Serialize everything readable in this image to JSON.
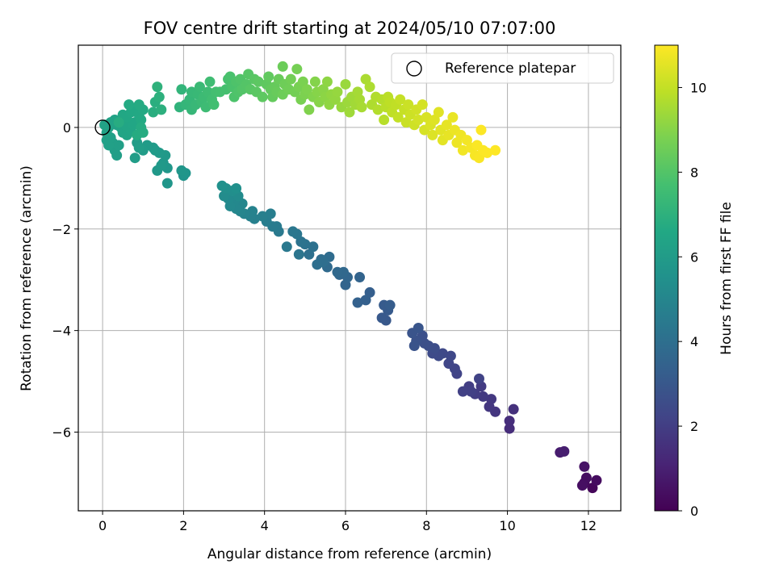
{
  "chart_data": {
    "type": "scatter",
    "title": "FOV centre drift starting at 2024/05/10 07:07:00",
    "xlabel": "Angular distance from reference (arcmin)",
    "ylabel": "Rotation from reference (arcmin)",
    "xlim": [
      -0.6,
      12.8
    ],
    "ylim": [
      -7.55,
      1.62
    ],
    "x_ticks": [
      0,
      2,
      4,
      6,
      8,
      10,
      12
    ],
    "y_ticks": [
      0,
      -2,
      -4,
      -6
    ],
    "grid": true,
    "legend": {
      "placement": "top-right",
      "entries": [
        "Reference platepar"
      ]
    },
    "reference_point": {
      "x": 0,
      "y": 0
    },
    "colorbar": {
      "label": "Hours from first FF file",
      "range": [
        0,
        11
      ],
      "ticks": [
        0,
        2,
        4,
        6,
        8,
        10
      ],
      "colormap": "viridis"
    },
    "points": [
      {
        "x": 12.1,
        "y": -7.1,
        "h": 0.2
      },
      {
        "x": 11.9,
        "y": -7.0,
        "h": 0.3
      },
      {
        "x": 12.2,
        "y": -6.95,
        "h": 0.35
      },
      {
        "x": 11.95,
        "y": -6.9,
        "h": 0.4
      },
      {
        "x": 11.85,
        "y": -7.05,
        "h": 0.45
      },
      {
        "x": 11.9,
        "y": -6.68,
        "h": 0.55
      },
      {
        "x": 11.3,
        "y": -6.4,
        "h": 0.85
      },
      {
        "x": 11.4,
        "y": -6.38,
        "h": 0.9
      },
      {
        "x": 10.05,
        "y": -5.93,
        "h": 1.4
      },
      {
        "x": 10.05,
        "y": -5.78,
        "h": 1.45
      },
      {
        "x": 10.15,
        "y": -5.55,
        "h": 1.55
      },
      {
        "x": 9.7,
        "y": -5.6,
        "h": 1.7
      },
      {
        "x": 9.55,
        "y": -5.5,
        "h": 1.75
      },
      {
        "x": 9.6,
        "y": -5.35,
        "h": 1.8
      },
      {
        "x": 9.4,
        "y": -5.3,
        "h": 1.85
      },
      {
        "x": 9.35,
        "y": -5.1,
        "h": 1.9
      },
      {
        "x": 9.2,
        "y": -5.25,
        "h": 1.95
      },
      {
        "x": 9.05,
        "y": -5.1,
        "h": 2.0
      },
      {
        "x": 9.1,
        "y": -5.2,
        "h": 2.05
      },
      {
        "x": 8.9,
        "y": -5.2,
        "h": 2.1
      },
      {
        "x": 9.3,
        "y": -4.95,
        "h": 2.15
      },
      {
        "x": 8.75,
        "y": -4.85,
        "h": 2.2
      },
      {
        "x": 8.7,
        "y": -4.75,
        "h": 2.25
      },
      {
        "x": 8.55,
        "y": -4.65,
        "h": 2.3
      },
      {
        "x": 8.6,
        "y": -4.5,
        "h": 2.35
      },
      {
        "x": 8.4,
        "y": -4.45,
        "h": 2.4
      },
      {
        "x": 8.3,
        "y": -4.5,
        "h": 2.45
      },
      {
        "x": 8.15,
        "y": -4.45,
        "h": 2.5
      },
      {
        "x": 8.2,
        "y": -4.35,
        "h": 2.55
      },
      {
        "x": 8.05,
        "y": -4.3,
        "h": 2.6
      },
      {
        "x": 7.95,
        "y": -4.25,
        "h": 2.65
      },
      {
        "x": 7.9,
        "y": -4.1,
        "h": 2.7
      },
      {
        "x": 7.75,
        "y": -4.2,
        "h": 2.75
      },
      {
        "x": 7.7,
        "y": -4.3,
        "h": 2.8
      },
      {
        "x": 7.65,
        "y": -4.05,
        "h": 2.85
      },
      {
        "x": 7.8,
        "y": -3.95,
        "h": 2.9
      },
      {
        "x": 7.0,
        "y": -3.8,
        "h": 3.0
      },
      {
        "x": 6.9,
        "y": -3.75,
        "h": 3.05
      },
      {
        "x": 7.05,
        "y": -3.6,
        "h": 3.1
      },
      {
        "x": 6.95,
        "y": -3.5,
        "h": 3.15
      },
      {
        "x": 7.1,
        "y": -3.5,
        "h": 3.2
      },
      {
        "x": 6.6,
        "y": -3.25,
        "h": 3.3
      },
      {
        "x": 6.5,
        "y": -3.4,
        "h": 3.35
      },
      {
        "x": 6.3,
        "y": -3.45,
        "h": 3.4
      },
      {
        "x": 6.35,
        "y": -2.95,
        "h": 3.5
      },
      {
        "x": 6.0,
        "y": -3.1,
        "h": 3.55
      },
      {
        "x": 6.05,
        "y": -2.95,
        "h": 3.6
      },
      {
        "x": 5.85,
        "y": -2.9,
        "h": 3.65
      },
      {
        "x": 5.95,
        "y": -2.85,
        "h": 3.7
      },
      {
        "x": 5.8,
        "y": -2.85,
        "h": 3.75
      },
      {
        "x": 5.55,
        "y": -2.75,
        "h": 3.8
      },
      {
        "x": 5.6,
        "y": -2.55,
        "h": 3.85
      },
      {
        "x": 5.4,
        "y": -2.6,
        "h": 3.9
      },
      {
        "x": 5.45,
        "y": -2.65,
        "h": 3.95
      },
      {
        "x": 5.3,
        "y": -2.7,
        "h": 4.0
      },
      {
        "x": 5.1,
        "y": -2.5,
        "h": 4.05
      },
      {
        "x": 5.2,
        "y": -2.35,
        "h": 4.1
      },
      {
        "x": 5.0,
        "y": -2.3,
        "h": 4.15
      },
      {
        "x": 4.9,
        "y": -2.25,
        "h": 4.2
      },
      {
        "x": 4.85,
        "y": -2.5,
        "h": 4.25
      },
      {
        "x": 4.8,
        "y": -2.1,
        "h": 4.3
      },
      {
        "x": 4.7,
        "y": -2.05,
        "h": 4.35
      },
      {
        "x": 4.55,
        "y": -2.35,
        "h": 4.4
      },
      {
        "x": 4.35,
        "y": -2.05,
        "h": 4.45
      },
      {
        "x": 4.3,
        "y": -1.95,
        "h": 4.5
      },
      {
        "x": 4.2,
        "y": -1.95,
        "h": 4.55
      },
      {
        "x": 4.05,
        "y": -1.85,
        "h": 4.6
      },
      {
        "x": 4.15,
        "y": -1.7,
        "h": 4.65
      },
      {
        "x": 3.95,
        "y": -1.75,
        "h": 4.7
      },
      {
        "x": 3.75,
        "y": -1.8,
        "h": 4.75
      },
      {
        "x": 3.65,
        "y": -1.75,
        "h": 4.8
      },
      {
        "x": 3.7,
        "y": -1.65,
        "h": 4.85
      },
      {
        "x": 3.5,
        "y": -1.7,
        "h": 4.9
      },
      {
        "x": 3.4,
        "y": -1.65,
        "h": 4.95
      },
      {
        "x": 3.45,
        "y": -1.5,
        "h": 5.0
      },
      {
        "x": 3.3,
        "y": -1.6,
        "h": 5.05
      },
      {
        "x": 3.25,
        "y": -1.45,
        "h": 5.1
      },
      {
        "x": 3.15,
        "y": -1.55,
        "h": 5.15
      },
      {
        "x": 3.1,
        "y": -1.4,
        "h": 5.2
      },
      {
        "x": 3.35,
        "y": -1.35,
        "h": 5.25
      },
      {
        "x": 3.0,
        "y": -1.35,
        "h": 5.3
      },
      {
        "x": 3.2,
        "y": -1.25,
        "h": 5.35
      },
      {
        "x": 3.05,
        "y": -1.2,
        "h": 5.4
      },
      {
        "x": 3.3,
        "y": -1.2,
        "h": 5.45
      },
      {
        "x": 2.95,
        "y": -1.15,
        "h": 5.5
      },
      {
        "x": 2.0,
        "y": -0.95,
        "h": 5.65
      },
      {
        "x": 2.05,
        "y": -0.9,
        "h": 5.7
      },
      {
        "x": 1.95,
        "y": -0.85,
        "h": 5.72
      },
      {
        "x": 1.6,
        "y": -1.1,
        "h": 5.75
      },
      {
        "x": 1.6,
        "y": -0.8,
        "h": 5.8
      },
      {
        "x": 1.5,
        "y": -0.7,
        "h": 5.82
      },
      {
        "x": 1.35,
        "y": -0.85,
        "h": 5.85
      },
      {
        "x": 1.45,
        "y": -0.75,
        "h": 5.87
      },
      {
        "x": 1.55,
        "y": -0.55,
        "h": 5.9
      },
      {
        "x": 1.4,
        "y": -0.5,
        "h": 5.92
      },
      {
        "x": 1.3,
        "y": -0.45,
        "h": 5.95
      },
      {
        "x": 1.25,
        "y": -0.4,
        "h": 5.97
      },
      {
        "x": 1.1,
        "y": -0.35,
        "h": 6.0
      },
      {
        "x": 1.0,
        "y": -0.45,
        "h": 6.02
      },
      {
        "x": 0.85,
        "y": -0.3,
        "h": 6.05
      },
      {
        "x": 0.8,
        "y": -0.6,
        "h": 6.07
      },
      {
        "x": 0.9,
        "y": -0.4,
        "h": 6.1
      },
      {
        "x": 0.35,
        "y": -0.55,
        "h": 6.12
      },
      {
        "x": 0.3,
        "y": -0.45,
        "h": 6.14
      },
      {
        "x": 0.4,
        "y": -0.35,
        "h": 6.16
      },
      {
        "x": 0.25,
        "y": -0.3,
        "h": 6.18
      },
      {
        "x": 0.15,
        "y": -0.35,
        "h": 6.2
      },
      {
        "x": 0.1,
        "y": -0.25,
        "h": 6.22
      },
      {
        "x": 0.2,
        "y": -0.2,
        "h": 6.24
      },
      {
        "x": 0.1,
        "y": -0.1,
        "h": 6.26
      },
      {
        "x": 0.15,
        "y": 0.0,
        "h": 6.28
      },
      {
        "x": 0.05,
        "y": 0.05,
        "h": 6.3
      },
      {
        "x": 0.2,
        "y": 0.1,
        "h": 6.32
      },
      {
        "x": 0.3,
        "y": 0.15,
        "h": 6.34
      },
      {
        "x": 0.35,
        "y": 0.05,
        "h": 6.36
      },
      {
        "x": 0.45,
        "y": 0.0,
        "h": 6.38
      },
      {
        "x": 0.5,
        "y": -0.1,
        "h": 6.4
      },
      {
        "x": 0.6,
        "y": -0.15,
        "h": 6.42
      },
      {
        "x": 0.55,
        "y": 0.05,
        "h": 6.44
      },
      {
        "x": 0.65,
        "y": 0.1,
        "h": 6.46
      },
      {
        "x": 0.7,
        "y": -0.05,
        "h": 6.48
      },
      {
        "x": 0.75,
        "y": 0.05,
        "h": 6.5
      },
      {
        "x": 0.8,
        "y": 0.1,
        "h": 6.52
      },
      {
        "x": 0.6,
        "y": 0.2,
        "h": 6.54
      },
      {
        "x": 0.5,
        "y": 0.25,
        "h": 6.56
      },
      {
        "x": 0.7,
        "y": 0.3,
        "h": 6.58
      },
      {
        "x": 0.8,
        "y": 0.35,
        "h": 6.6
      },
      {
        "x": 0.9,
        "y": 0.25,
        "h": 6.62
      },
      {
        "x": 0.95,
        "y": 0.15,
        "h": 6.64
      },
      {
        "x": 1.0,
        "y": 0.35,
        "h": 6.66
      },
      {
        "x": 0.65,
        "y": 0.45,
        "h": 6.68
      },
      {
        "x": 0.9,
        "y": 0.45,
        "h": 6.7
      },
      {
        "x": 0.95,
        "y": 0.0,
        "h": 6.72
      },
      {
        "x": 0.85,
        "y": -0.15,
        "h": 6.74
      },
      {
        "x": 1.0,
        "y": -0.1,
        "h": 6.76
      },
      {
        "x": 0.4,
        "y": 0.1,
        "h": 6.78
      },
      {
        "x": 1.25,
        "y": 0.3,
        "h": 6.85
      },
      {
        "x": 1.3,
        "y": 0.5,
        "h": 6.9
      },
      {
        "x": 1.45,
        "y": 0.35,
        "h": 6.95
      },
      {
        "x": 1.4,
        "y": 0.6,
        "h": 7.0
      },
      {
        "x": 1.35,
        "y": 0.8,
        "h": 7.05
      },
      {
        "x": 1.9,
        "y": 0.4,
        "h": 7.1
      },
      {
        "x": 1.95,
        "y": 0.75,
        "h": 7.15
      },
      {
        "x": 2.05,
        "y": 0.45,
        "h": 7.2
      },
      {
        "x": 2.15,
        "y": 0.55,
        "h": 7.25
      },
      {
        "x": 2.2,
        "y": 0.35,
        "h": 7.28
      },
      {
        "x": 2.2,
        "y": 0.7,
        "h": 7.3
      },
      {
        "x": 2.3,
        "y": 0.45,
        "h": 7.33
      },
      {
        "x": 2.35,
        "y": 0.65,
        "h": 7.36
      },
      {
        "x": 2.4,
        "y": 0.8,
        "h": 7.4
      },
      {
        "x": 2.45,
        "y": 0.5,
        "h": 7.43
      },
      {
        "x": 2.5,
        "y": 0.6,
        "h": 7.46
      },
      {
        "x": 2.55,
        "y": 0.4,
        "h": 7.5
      },
      {
        "x": 2.6,
        "y": 0.7,
        "h": 7.53
      },
      {
        "x": 2.65,
        "y": 0.9,
        "h": 7.56
      },
      {
        "x": 2.7,
        "y": 0.55,
        "h": 7.6
      },
      {
        "x": 2.75,
        "y": 0.45,
        "h": 7.63
      },
      {
        "x": 2.8,
        "y": 0.7,
        "h": 7.66
      },
      {
        "x": 2.9,
        "y": 0.7,
        "h": 7.7
      },
      {
        "x": 3.05,
        "y": 0.75,
        "h": 7.73
      },
      {
        "x": 3.1,
        "y": 0.95,
        "h": 7.76
      },
      {
        "x": 3.15,
        "y": 1.0,
        "h": 7.8
      },
      {
        "x": 3.2,
        "y": 0.8,
        "h": 7.83
      },
      {
        "x": 3.25,
        "y": 0.6,
        "h": 7.86
      },
      {
        "x": 3.3,
        "y": 0.9,
        "h": 7.9
      },
      {
        "x": 3.35,
        "y": 0.7,
        "h": 7.93
      },
      {
        "x": 3.4,
        "y": 0.95,
        "h": 7.96
      },
      {
        "x": 3.45,
        "y": 0.75,
        "h": 8.0
      },
      {
        "x": 3.55,
        "y": 0.85,
        "h": 8.03
      },
      {
        "x": 3.6,
        "y": 1.05,
        "h": 8.06
      },
      {
        "x": 3.65,
        "y": 0.75,
        "h": 8.1
      },
      {
        "x": 3.75,
        "y": 0.95,
        "h": 8.13
      },
      {
        "x": 3.8,
        "y": 0.7,
        "h": 8.16
      },
      {
        "x": 3.85,
        "y": 0.9,
        "h": 8.2
      },
      {
        "x": 3.95,
        "y": 0.6,
        "h": 8.23
      },
      {
        "x": 4.05,
        "y": 0.85,
        "h": 8.26
      },
      {
        "x": 4.1,
        "y": 1.0,
        "h": 8.3
      },
      {
        "x": 4.15,
        "y": 0.75,
        "h": 8.33
      },
      {
        "x": 4.2,
        "y": 0.6,
        "h": 8.36
      },
      {
        "x": 4.25,
        "y": 0.8,
        "h": 8.4
      },
      {
        "x": 4.3,
        "y": 0.7,
        "h": 8.43
      },
      {
        "x": 4.35,
        "y": 0.95,
        "h": 8.46
      },
      {
        "x": 4.45,
        "y": 1.2,
        "h": 8.5
      },
      {
        "x": 4.45,
        "y": 0.65,
        "h": 8.53
      },
      {
        "x": 4.5,
        "y": 0.85,
        "h": 8.56
      },
      {
        "x": 4.6,
        "y": 0.75,
        "h": 8.6
      },
      {
        "x": 4.65,
        "y": 0.95,
        "h": 8.63
      },
      {
        "x": 4.75,
        "y": 0.7,
        "h": 8.66
      },
      {
        "x": 4.8,
        "y": 1.15,
        "h": 8.7
      },
      {
        "x": 4.85,
        "y": 0.8,
        "h": 8.73
      },
      {
        "x": 4.9,
        "y": 0.55,
        "h": 8.76
      },
      {
        "x": 4.95,
        "y": 0.9,
        "h": 8.8
      },
      {
        "x": 5.0,
        "y": 0.65,
        "h": 8.83
      },
      {
        "x": 5.05,
        "y": 0.75,
        "h": 8.86
      },
      {
        "x": 5.1,
        "y": 0.35,
        "h": 8.9
      },
      {
        "x": 5.2,
        "y": 0.6,
        "h": 8.93
      },
      {
        "x": 5.25,
        "y": 0.9,
        "h": 8.96
      },
      {
        "x": 5.3,
        "y": 0.7,
        "h": 9.0
      },
      {
        "x": 5.35,
        "y": 0.5,
        "h": 9.03
      },
      {
        "x": 5.45,
        "y": 0.75,
        "h": 9.06
      },
      {
        "x": 5.5,
        "y": 0.6,
        "h": 9.1
      },
      {
        "x": 5.55,
        "y": 0.9,
        "h": 9.13
      },
      {
        "x": 5.6,
        "y": 0.45,
        "h": 9.16
      },
      {
        "x": 5.65,
        "y": 0.65,
        "h": 9.2
      },
      {
        "x": 5.75,
        "y": 0.55,
        "h": 9.23
      },
      {
        "x": 5.8,
        "y": 0.7,
        "h": 9.26
      },
      {
        "x": 5.9,
        "y": 0.4,
        "h": 9.3
      },
      {
        "x": 6.0,
        "y": 0.85,
        "h": 9.33
      },
      {
        "x": 6.05,
        "y": 0.5,
        "h": 9.36
      },
      {
        "x": 6.1,
        "y": 0.3,
        "h": 9.4
      },
      {
        "x": 6.15,
        "y": 0.6,
        "h": 9.43
      },
      {
        "x": 6.25,
        "y": 0.45,
        "h": 9.46
      },
      {
        "x": 6.3,
        "y": 0.7,
        "h": 9.5
      },
      {
        "x": 6.35,
        "y": 0.55,
        "h": 9.53
      },
      {
        "x": 6.4,
        "y": 0.4,
        "h": 9.56
      },
      {
        "x": 6.5,
        "y": 0.95,
        "h": 9.6
      },
      {
        "x": 6.6,
        "y": 0.8,
        "h": 9.63
      },
      {
        "x": 6.65,
        "y": 0.45,
        "h": 9.66
      },
      {
        "x": 6.75,
        "y": 0.6,
        "h": 9.7
      },
      {
        "x": 6.8,
        "y": 0.35,
        "h": 9.73
      },
      {
        "x": 6.9,
        "y": 0.55,
        "h": 9.76
      },
      {
        "x": 6.95,
        "y": 0.15,
        "h": 9.8
      },
      {
        "x": 7.0,
        "y": 0.4,
        "h": 9.83
      },
      {
        "x": 7.05,
        "y": 0.6,
        "h": 9.86
      },
      {
        "x": 7.1,
        "y": 0.5,
        "h": 9.9
      },
      {
        "x": 7.15,
        "y": 0.3,
        "h": 9.93
      },
      {
        "x": 7.25,
        "y": 0.45,
        "h": 9.96
      },
      {
        "x": 7.3,
        "y": 0.2,
        "h": 10.0
      },
      {
        "x": 7.35,
        "y": 0.55,
        "h": 10.03
      },
      {
        "x": 7.45,
        "y": 0.35,
        "h": 10.06
      },
      {
        "x": 7.5,
        "y": 0.1,
        "h": 10.1
      },
      {
        "x": 7.55,
        "y": 0.45,
        "h": 10.13
      },
      {
        "x": 7.6,
        "y": 0.25,
        "h": 10.16
      },
      {
        "x": 7.7,
        "y": 0.05,
        "h": 10.2
      },
      {
        "x": 7.75,
        "y": 0.35,
        "h": 10.23
      },
      {
        "x": 7.8,
        "y": 0.15,
        "h": 10.26
      },
      {
        "x": 7.9,
        "y": 0.45,
        "h": 10.3
      },
      {
        "x": 7.95,
        "y": -0.05,
        "h": 10.33
      },
      {
        "x": 8.0,
        "y": 0.2,
        "h": 10.36
      },
      {
        "x": 8.1,
        "y": 0.05,
        "h": 10.4
      },
      {
        "x": 8.15,
        "y": -0.15,
        "h": 10.43
      },
      {
        "x": 8.2,
        "y": 0.15,
        "h": 10.46
      },
      {
        "x": 8.3,
        "y": 0.3,
        "h": 10.5
      },
      {
        "x": 8.35,
        "y": -0.05,
        "h": 10.53
      },
      {
        "x": 8.4,
        "y": -0.25,
        "h": 10.56
      },
      {
        "x": 8.5,
        "y": 0.05,
        "h": 10.6
      },
      {
        "x": 8.55,
        "y": -0.15,
        "h": 10.63
      },
      {
        "x": 8.65,
        "y": 0.2,
        "h": 10.66
      },
      {
        "x": 8.7,
        "y": -0.05,
        "h": 10.7
      },
      {
        "x": 8.75,
        "y": -0.3,
        "h": 10.73
      },
      {
        "x": 8.85,
        "y": -0.15,
        "h": 10.76
      },
      {
        "x": 8.9,
        "y": -0.45,
        "h": 10.8
      },
      {
        "x": 9.0,
        "y": -0.25,
        "h": 10.83
      },
      {
        "x": 9.1,
        "y": -0.4,
        "h": 10.86
      },
      {
        "x": 9.2,
        "y": -0.55,
        "h": 10.9
      },
      {
        "x": 9.3,
        "y": -0.6,
        "h": 10.93
      },
      {
        "x": 9.25,
        "y": -0.35,
        "h": 10.95
      },
      {
        "x": 9.4,
        "y": -0.45,
        "h": 10.97
      },
      {
        "x": 9.5,
        "y": -0.5,
        "h": 10.98
      },
      {
        "x": 9.35,
        "y": -0.05,
        "h": 10.99
      },
      {
        "x": 9.7,
        "y": -0.45,
        "h": 11.0
      }
    ]
  }
}
